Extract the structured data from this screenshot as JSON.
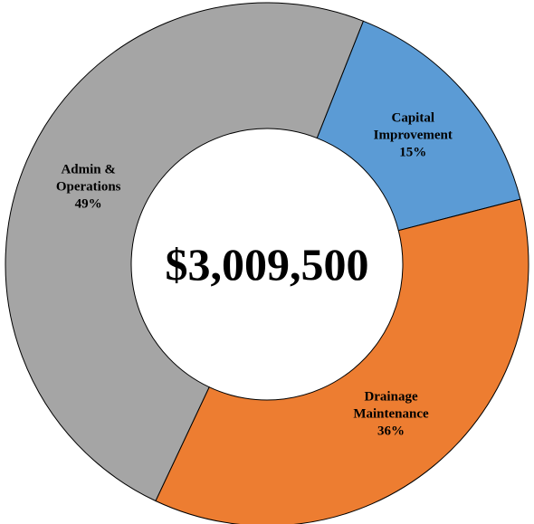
{
  "chart_data": {
    "type": "donut",
    "center_label": "$3,009,500",
    "categories": [
      "Capital Improvement",
      "Drainage Maintenance",
      "Admin & Operations"
    ],
    "values": [
      15,
      36,
      49
    ],
    "value_labels": [
      "15%",
      "36%",
      "49%"
    ],
    "colors": [
      "#5b9bd5",
      "#ed7d31",
      "#a5a5a5"
    ]
  }
}
